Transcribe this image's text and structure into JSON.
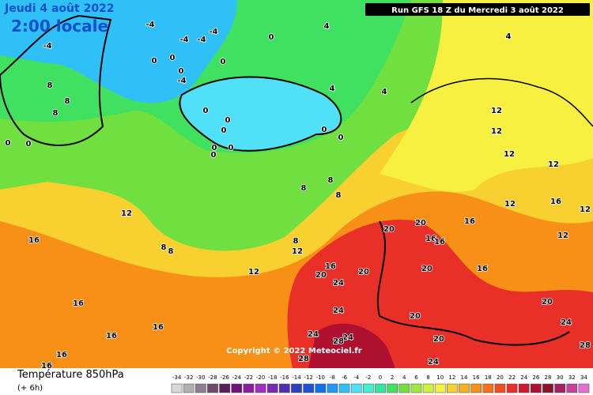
{
  "header": {
    "date": "Jeudi 4 août 2022",
    "time": "2:00 locale",
    "run": "Run GFS 18 Z du Mercredi 3 août 2022"
  },
  "copyright": "Copyright © 2022 Meteociel.fr",
  "footer": {
    "title": "Température 850hPa",
    "step": "(+ 6h)"
  },
  "colorbar": {
    "ticks": [
      -34,
      -32,
      -30,
      -28,
      -26,
      -24,
      -22,
      -20,
      -18,
      -16,
      -14,
      -12,
      -10,
      -8,
      -6,
      -4,
      -2,
      0,
      2,
      4,
      6,
      8,
      10,
      12,
      14,
      16,
      18,
      20,
      22,
      24,
      26,
      28,
      30,
      32,
      34
    ],
    "colors": [
      "#d8d8d8",
      "#b0b0b0",
      "#8c7e8c",
      "#6e4a6e",
      "#5a1e5a",
      "#70107a",
      "#8a1ea0",
      "#a030c0",
      "#7a2ab0",
      "#5030b0",
      "#3040c0",
      "#2050d8",
      "#1070f0",
      "#2098f8",
      "#30c0f8",
      "#50e0f8",
      "#40f0d0",
      "#30e8a0",
      "#40e060",
      "#70e040",
      "#a0e840",
      "#d0f040",
      "#f8f040",
      "#f8d030",
      "#f8b020",
      "#f89018",
      "#f87018",
      "#f05020",
      "#e83028",
      "#d01830",
      "#b01030",
      "#901028",
      "#a82060",
      "#c840a0",
      "#e070d0"
    ]
  },
  "map_labels": [
    -4,
    -4,
    -4,
    -4,
    -4,
    0,
    4,
    4,
    4,
    4,
    12,
    12,
    12,
    12,
    12,
    16,
    12,
    12,
    16,
    16,
    16,
    20,
    20,
    20,
    20,
    16,
    16,
    20,
    24,
    24,
    20,
    20,
    24,
    28,
    24,
    24,
    20,
    24,
    28,
    28,
    12,
    16,
    8,
    12,
    8,
    8,
    12,
    16,
    16,
    16,
    16,
    16,
    0,
    0,
    0,
    0,
    0,
    0,
    0,
    0,
    0,
    0,
    8,
    8,
    8,
    0,
    0,
    0,
    0,
    -4,
    8,
    8,
    8
  ]
}
